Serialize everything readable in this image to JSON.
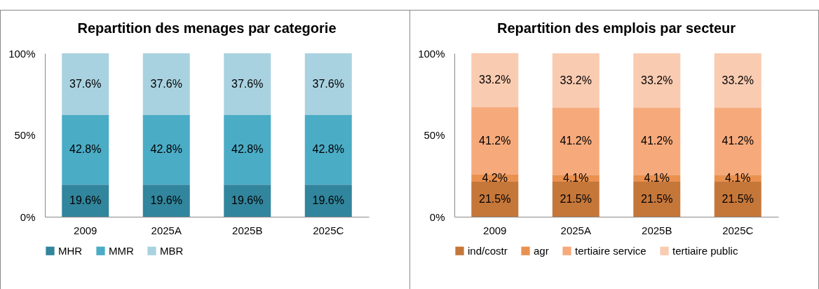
{
  "chart_data": [
    {
      "type": "bar",
      "title": "Repartition des menages par categorie",
      "stacked": true,
      "categories": [
        "2009",
        "2025A",
        "2025B",
        "2025C"
      ],
      "ylim": [
        0,
        100
      ],
      "yticks": [
        {
          "value": 0,
          "label": "0%"
        },
        {
          "value": 50,
          "label": "50%"
        },
        {
          "value": 100,
          "label": "100%"
        }
      ],
      "grid": false,
      "legend": "bottom",
      "series": [
        {
          "name": "MHR",
          "color": "#31859c",
          "values": [
            19.6,
            19.6,
            19.6,
            19.6
          ],
          "value_labels": [
            "19.6%",
            "19.6%",
            "19.6%",
            "19.6%"
          ]
        },
        {
          "name": "MMR",
          "color": "#4bacc6",
          "values": [
            42.8,
            42.8,
            42.8,
            42.8
          ],
          "value_labels": [
            "42.8%",
            "42.8%",
            "42.8%",
            "42.8%"
          ]
        },
        {
          "name": "MBR",
          "color": "#a9d2e0",
          "values": [
            37.6,
            37.6,
            37.6,
            37.6
          ],
          "value_labels": [
            "37.6%",
            "37.6%",
            "37.6%",
            "37.6%"
          ]
        }
      ]
    },
    {
      "type": "bar",
      "title": "Repartition des emplois par secteur",
      "stacked": true,
      "categories": [
        "2009",
        "2025A",
        "2025B",
        "2025C"
      ],
      "ylim": [
        0,
        100
      ],
      "yticks": [
        {
          "value": 0,
          "label": "0%"
        },
        {
          "value": 50,
          "label": "50%"
        },
        {
          "value": 100,
          "label": "100%"
        }
      ],
      "grid": false,
      "legend": "bottom",
      "series": [
        {
          "name": "ind/costr",
          "color": "#c5773a",
          "values": [
            21.5,
            21.5,
            21.5,
            21.5
          ],
          "value_labels": [
            "21.5%",
            "21.5%",
            "21.5%",
            "21.5%"
          ]
        },
        {
          "name": "agr",
          "color": "#ea9150",
          "values": [
            4.2,
            4.1,
            4.1,
            4.1
          ],
          "value_labels": [
            "4.2%",
            "4.1%",
            "4.1%",
            "4.1%"
          ]
        },
        {
          "name": "tertiaire service",
          "color": "#f6aa7c",
          "values": [
            41.2,
            41.2,
            41.2,
            41.2
          ],
          "value_labels": [
            "41.2%",
            "41.2%",
            "41.2%",
            "41.2%"
          ]
        },
        {
          "name": "tertiaire public",
          "color": "#f9cbb1",
          "values": [
            33.2,
            33.2,
            33.2,
            33.2
          ],
          "value_labels": [
            "33.2%",
            "33.2%",
            "33.2%",
            "33.2%"
          ]
        }
      ]
    }
  ]
}
